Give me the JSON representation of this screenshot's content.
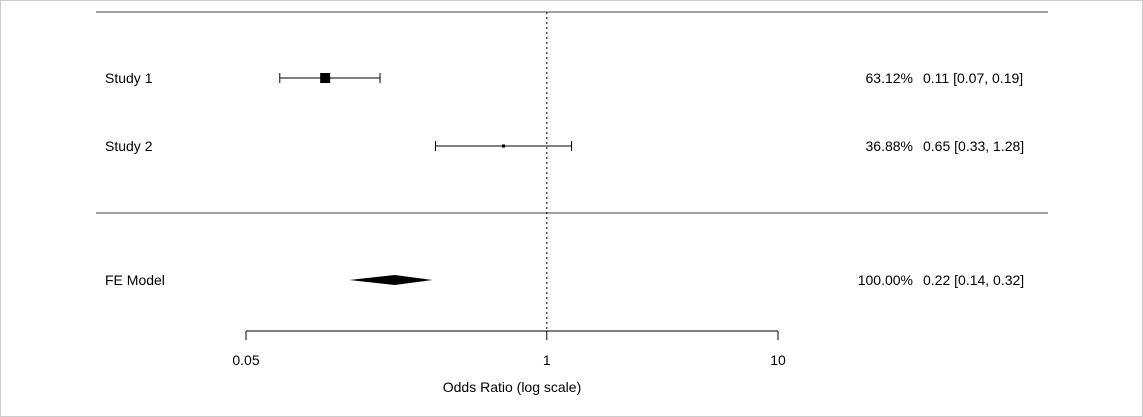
{
  "chart_data": {
    "type": "forest",
    "xlabel": "Odds Ratio (log scale)",
    "x_scale": "log",
    "xlim": [
      0.05,
      10
    ],
    "ticks": [
      {
        "value": 0.05,
        "label": "0.05"
      },
      {
        "value": 1,
        "label": "1"
      },
      {
        "value": 10,
        "label": "10"
      }
    ],
    "reference_line": 1,
    "studies": [
      {
        "label": "Study 1",
        "estimate": 0.11,
        "lower": 0.07,
        "upper": 0.19,
        "weight": "63.12%",
        "ci_text": "0.11 [0.07, 0.19]",
        "weight_value": 63.12
      },
      {
        "label": "Study 2",
        "estimate": 0.65,
        "lower": 0.33,
        "upper": 1.28,
        "weight": "36.88%",
        "ci_text": "0.65 [0.33, 1.28]",
        "weight_value": 36.88
      }
    ],
    "summary": {
      "label": "FE Model",
      "estimate": 0.22,
      "lower": 0.14,
      "upper": 0.32,
      "weight": "100.00%",
      "ci_text": "0.22 [0.14, 0.32]"
    },
    "colors": {
      "ink": "#000000",
      "frame": "#444444",
      "border": "#cccccc"
    }
  }
}
